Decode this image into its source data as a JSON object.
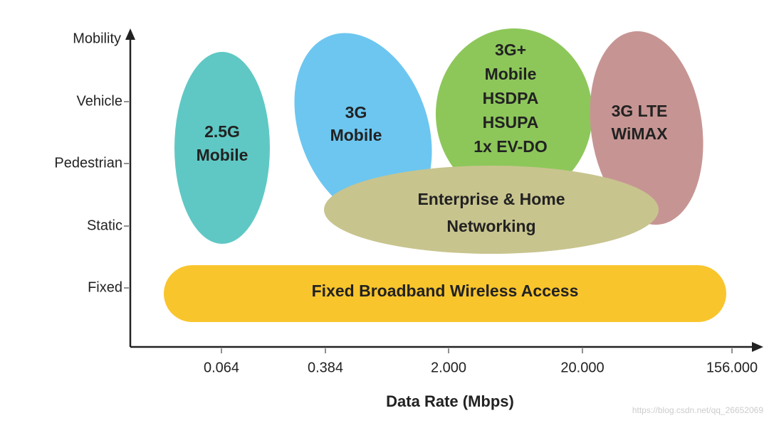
{
  "y_axis": {
    "label": "Mobility",
    "levels": [
      "Vehicle",
      "Pedestrian",
      "Static",
      "Fixed"
    ]
  },
  "x_axis": {
    "title": "Data Rate (Mbps)",
    "labels": [
      "0.064",
      "0.384",
      "2.000",
      "20.000",
      "156.000"
    ]
  },
  "regions": [
    {
      "lines": [
        "2.5G",
        "Mobile"
      ]
    },
    {
      "lines": [
        "3G",
        "Mobile"
      ]
    },
    {
      "lines": [
        "3G+",
        "Mobile",
        "HSDPA",
        "HSUPA",
        "1x EV-DO"
      ]
    },
    {
      "lines": [
        "3G LTE",
        "WiMAX"
      ]
    },
    {
      "lines": [
        "Enterprise & Home",
        "Networking"
      ]
    },
    {
      "lines": [
        "Fixed Broadband Wireless Access"
      ]
    }
  ],
  "watermark": "https://blog.csdn.net/qq_26652069"
}
